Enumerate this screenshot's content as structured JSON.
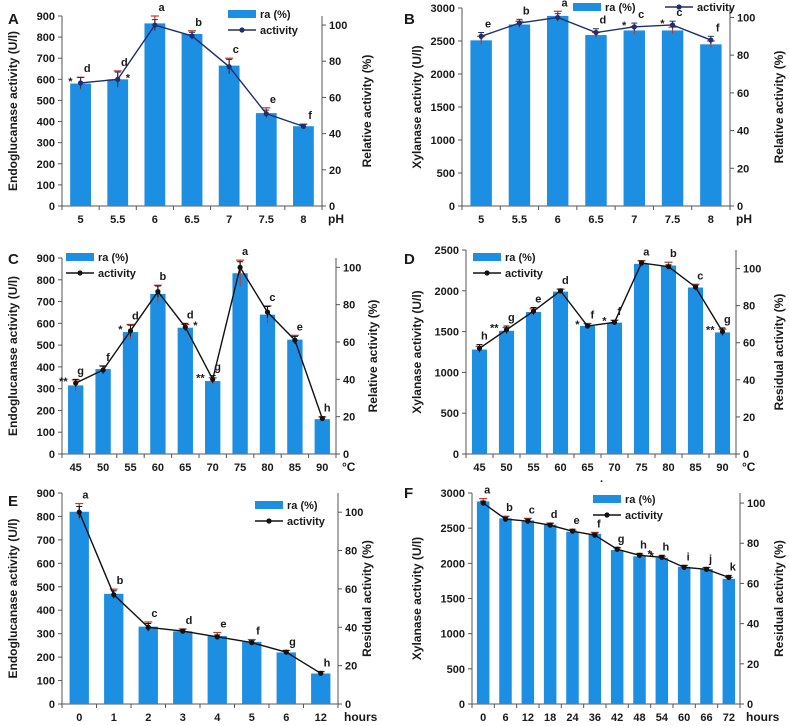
{
  "chart_data": [
    {
      "type": "bar",
      "panel": "A",
      "categories": [
        "5",
        "5.5",
        "6",
        "6.5",
        "7",
        "7.5",
        "8"
      ],
      "unit_label": "pH",
      "ylabel": "Endoglucanase activity (U/l)",
      "y2label": "Relative activity (%)",
      "ylim": [
        0,
        900
      ],
      "yticks": [
        0,
        100,
        200,
        300,
        400,
        500,
        600,
        700,
        800,
        900
      ],
      "y2lim": [
        0,
        105
      ],
      "y2ticks": [
        0,
        20,
        40,
        60,
        80,
        100
      ],
      "series": [
        {
          "name": "ra (%)",
          "values": [
            580,
            600,
            865,
            815,
            665,
            440,
            378
          ],
          "errors": [
            30,
            40,
            35,
            15,
            35,
            25,
            10
          ]
        },
        {
          "name": "activity",
          "values": [
            68,
            70,
            100,
            94,
            77,
            51,
            44
          ],
          "errors": [
            3,
            4,
            3,
            2,
            4,
            2,
            1
          ]
        }
      ],
      "letters": [
        "d",
        "d",
        "a",
        "b",
        "c",
        "e",
        "f"
      ],
      "stars": [
        {
          "index": 0,
          "side": "left",
          "text": "*"
        },
        {
          "index": 1,
          "side": "right",
          "text": "*"
        }
      ]
    },
    {
      "type": "bar",
      "panel": "B",
      "categories": [
        "5",
        "5.5",
        "6",
        "6.5",
        "7",
        "7.5",
        "8"
      ],
      "unit_label": "pH",
      "ylabel": "Xylanase activity (U/l)",
      "y2label": "Relative activity (%)",
      "ylim": [
        0,
        3000
      ],
      "yticks": [
        0,
        500,
        1000,
        1500,
        2000,
        2500,
        3000
      ],
      "y2lim": [
        0,
        105
      ],
      "y2ticks": [
        0,
        20,
        40,
        60,
        80,
        100
      ],
      "series": [
        {
          "name": "ra (%)",
          "values": [
            2510,
            2750,
            2880,
            2590,
            2660,
            2660,
            2450
          ],
          "errors": [
            60,
            50,
            70,
            40,
            60,
            50,
            50
          ]
        },
        {
          "name": "activity",
          "values": [
            90,
            97,
            100,
            92,
            95,
            96,
            88
          ],
          "errors": [
            2,
            2,
            2,
            2,
            2,
            2,
            2
          ]
        }
      ],
      "letters": [
        "e",
        "b",
        "a",
        "d",
        "c",
        "c",
        "f"
      ],
      "stars": [
        {
          "index": 4,
          "side": "left",
          "text": "*"
        },
        {
          "index": 5,
          "side": "left",
          "text": "*"
        }
      ]
    },
    {
      "type": "bar",
      "panel": "C",
      "categories": [
        "45",
        "50",
        "55",
        "60",
        "65",
        "70",
        "75",
        "80",
        "85",
        "90"
      ],
      "unit_label": "°C",
      "ylabel": "Endoglucanase activity (U/l)",
      "y2label": "Relative activity (%)",
      "ylim": [
        0,
        900
      ],
      "yticks": [
        0,
        100,
        200,
        300,
        400,
        500,
        600,
        700,
        800,
        900
      ],
      "y2lim": [
        0,
        105
      ],
      "y2ticks": [
        0,
        20,
        40,
        60,
        80,
        100
      ],
      "series": [
        {
          "name": "ra (%)",
          "values": [
            315,
            390,
            560,
            735,
            580,
            335,
            830,
            640,
            525,
            160
          ],
          "errors": [
            25,
            15,
            35,
            40,
            15,
            15,
            60,
            40,
            20,
            10
          ]
        },
        {
          "name": "activity",
          "values": [
            38,
            45,
            66,
            87,
            68,
            40,
            100,
            76,
            61,
            19
          ],
          "errors": [
            2,
            2,
            3,
            3,
            2,
            2,
            3,
            3,
            2,
            1
          ]
        }
      ],
      "letters": [
        "g",
        "f",
        "d",
        "b",
        "d",
        "g",
        "a",
        "c",
        "e",
        "h"
      ],
      "stars": [
        {
          "index": 0,
          "side": "left",
          "text": "**"
        },
        {
          "index": 2,
          "side": "left",
          "text": "*"
        },
        {
          "index": 4,
          "side": "right",
          "text": "*"
        },
        {
          "index": 5,
          "side": "left",
          "text": "**"
        }
      ]
    },
    {
      "type": "bar",
      "panel": "D",
      "categories": [
        "45",
        "50",
        "55",
        "60",
        "65",
        "70",
        "75",
        "80",
        "85",
        "90"
      ],
      "unit_label": "°C",
      "ylabel": "Xylanase activity (U/l)",
      "y2label": "Residual activity (%)",
      "ylim": [
        0,
        2500
      ],
      "yticks": [
        0,
        500,
        1000,
        1500,
        2000,
        2500
      ],
      "y2lim": [
        0,
        110
      ],
      "y2ticks": [
        0,
        20,
        40,
        60,
        80,
        100
      ],
      "series": [
        {
          "name": "ra (%)",
          "values": [
            1280,
            1510,
            1740,
            1990,
            1570,
            1610,
            2330,
            2310,
            2040,
            1490
          ],
          "errors": [
            40,
            40,
            40,
            30,
            30,
            30,
            40,
            40,
            40,
            40
          ]
        },
        {
          "name": "activity",
          "values": [
            57,
            67,
            77,
            88,
            69,
            71,
            103,
            101,
            90,
            66
          ],
          "errors": [
            2,
            2,
            2,
            1,
            1,
            1,
            1,
            1,
            1,
            2
          ]
        }
      ],
      "letters": [
        "h",
        "g",
        "e",
        "d",
        "f",
        "f",
        "a",
        "b",
        "c",
        "g"
      ],
      "stars": [
        {
          "index": 1,
          "side": "left",
          "text": "**"
        },
        {
          "index": 4,
          "side": "left",
          "text": "*"
        },
        {
          "index": 5,
          "side": "left",
          "text": "*"
        },
        {
          "index": 9,
          "side": "left",
          "text": "**"
        }
      ]
    },
    {
      "type": "bar",
      "panel": "E",
      "categories": [
        "0",
        "1",
        "2",
        "3",
        "4",
        "5",
        "6",
        "12"
      ],
      "unit_label": "hours",
      "ylabel": "Endoglucanase activity (U/l)",
      "y2label": "Residual activity (%)",
      "ylim": [
        0,
        900
      ],
      "yticks": [
        0,
        100,
        200,
        300,
        400,
        500,
        600,
        700,
        800,
        900
      ],
      "y2lim": [
        0,
        110
      ],
      "y2ticks": [
        0,
        20,
        40,
        60,
        80,
        100
      ],
      "series": [
        {
          "name": "ra (%)",
          "values": [
            820,
            470,
            330,
            310,
            290,
            265,
            220,
            130
          ],
          "errors": [
            35,
            20,
            20,
            10,
            15,
            10,
            8,
            8
          ]
        },
        {
          "name": "activity",
          "values": [
            100,
            57,
            40,
            38,
            35,
            32,
            27,
            16
          ],
          "errors": [
            3,
            2,
            2,
            1,
            1,
            1,
            1,
            1
          ]
        }
      ],
      "letters": [
        "a",
        "b",
        "c",
        "d",
        "e",
        "f",
        "g",
        "h"
      ],
      "stars": []
    },
    {
      "type": "bar",
      "panel": "F",
      "categories": [
        "0",
        "6",
        "12",
        "18",
        "24",
        "36",
        "42",
        "48",
        "54",
        "60",
        "66",
        "72"
      ],
      "unit_label": "hours",
      "ylabel": "Xylanase activity (U/l)",
      "y2label": "Residual activity (%)",
      "ylim": [
        0,
        3000
      ],
      "yticks": [
        0,
        500,
        1000,
        1500,
        2000,
        2500,
        3000
      ],
      "y2lim": [
        0,
        105
      ],
      "y2ticks": [
        0,
        20,
        40,
        60,
        80,
        100
      ],
      "series": [
        {
          "name": "ra (%)",
          "values": [
            2880,
            2640,
            2610,
            2550,
            2450,
            2420,
            2190,
            2100,
            2080,
            1950,
            1920,
            1780
          ],
          "errors": [
            40,
            30,
            30,
            20,
            20,
            20,
            30,
            30,
            20,
            20,
            20,
            20
          ]
        },
        {
          "name": "activity",
          "values": [
            100,
            92,
            91,
            89,
            86,
            84,
            77,
            74,
            73,
            68,
            67,
            63
          ],
          "errors": [
            1,
            1,
            1,
            1,
            1,
            1,
            1,
            1,
            1,
            1,
            1,
            1
          ]
        }
      ],
      "letters": [
        "a",
        "b",
        "c",
        "d",
        "e",
        "f",
        "g",
        "h",
        "h",
        "i",
        "j",
        "k"
      ],
      "stars": [
        {
          "index": 7,
          "side": "right",
          "text": "*"
        },
        {
          "index": 8,
          "side": "left",
          "text": "*"
        }
      ]
    }
  ],
  "colors": {
    "bar": "#1c8fe3",
    "error": "#c0392b",
    "line_dark": "#1f2f6e",
    "line_black": "#111111"
  },
  "footnote_mark": "."
}
